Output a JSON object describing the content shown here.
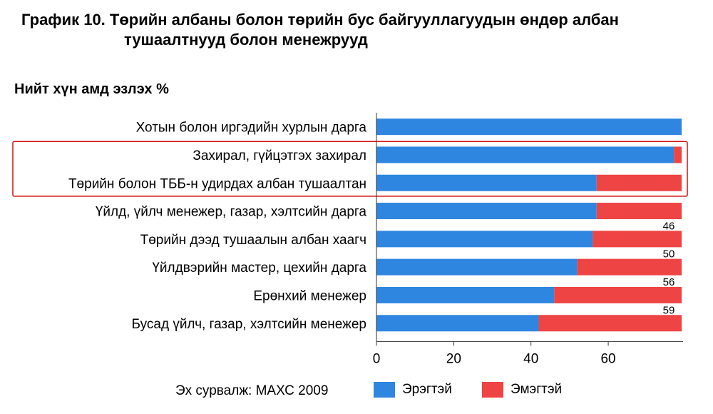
{
  "title_line1": "График 10. Төрийн албаны болон төрийн бус байгууллагуудын өндөр албан",
  "title_line2": "тушаалтнууд болон менежрууд",
  "subtitle": "Нийт хүн амд эзлэх %",
  "source": "Эх сурвалж: МАХС 2009",
  "colors": {
    "male": "#2E86E0",
    "female": "#EE4444",
    "highlight": "#D01010",
    "axis": "#333333"
  },
  "chart_data": {
    "type": "bar",
    "orientation": "horizontal",
    "stacked": true,
    "categories": [
      "Хотын болон иргэдийн хурлын дарга",
      "Захирал, гүйцэтгэх захирал",
      "Төрийн болон ТББ-н удирдах албан тушаалтан",
      "Үйлд, үйлч менежер, газар, хэлтсийн дарга",
      "Төрийн дээд тушаалын албан хаагч",
      "Үйлдвэрийн мастер, цехийн дарга",
      "Ерөнхий менежер",
      "Бусад үйлч, газар, хэлтсийн менежер"
    ],
    "series": [
      {
        "name": "Эрэгтэй",
        "values": [
          79,
          77,
          57,
          57,
          56,
          52,
          46,
          42
        ]
      },
      {
        "name": "Эмэгтэй",
        "values": [
          0,
          2,
          22,
          22,
          23,
          27,
          33,
          37
        ]
      }
    ],
    "data_labels": [
      "",
      "",
      "",
      "",
      "46",
      "50",
      "56",
      "59"
    ],
    "xaxis": {
      "ticks": [
        0,
        20,
        40,
        60
      ],
      "range": [
        0,
        79
      ]
    },
    "highlighted_categories": [
      1,
      2
    ],
    "legend": {
      "position": "bottom"
    }
  }
}
